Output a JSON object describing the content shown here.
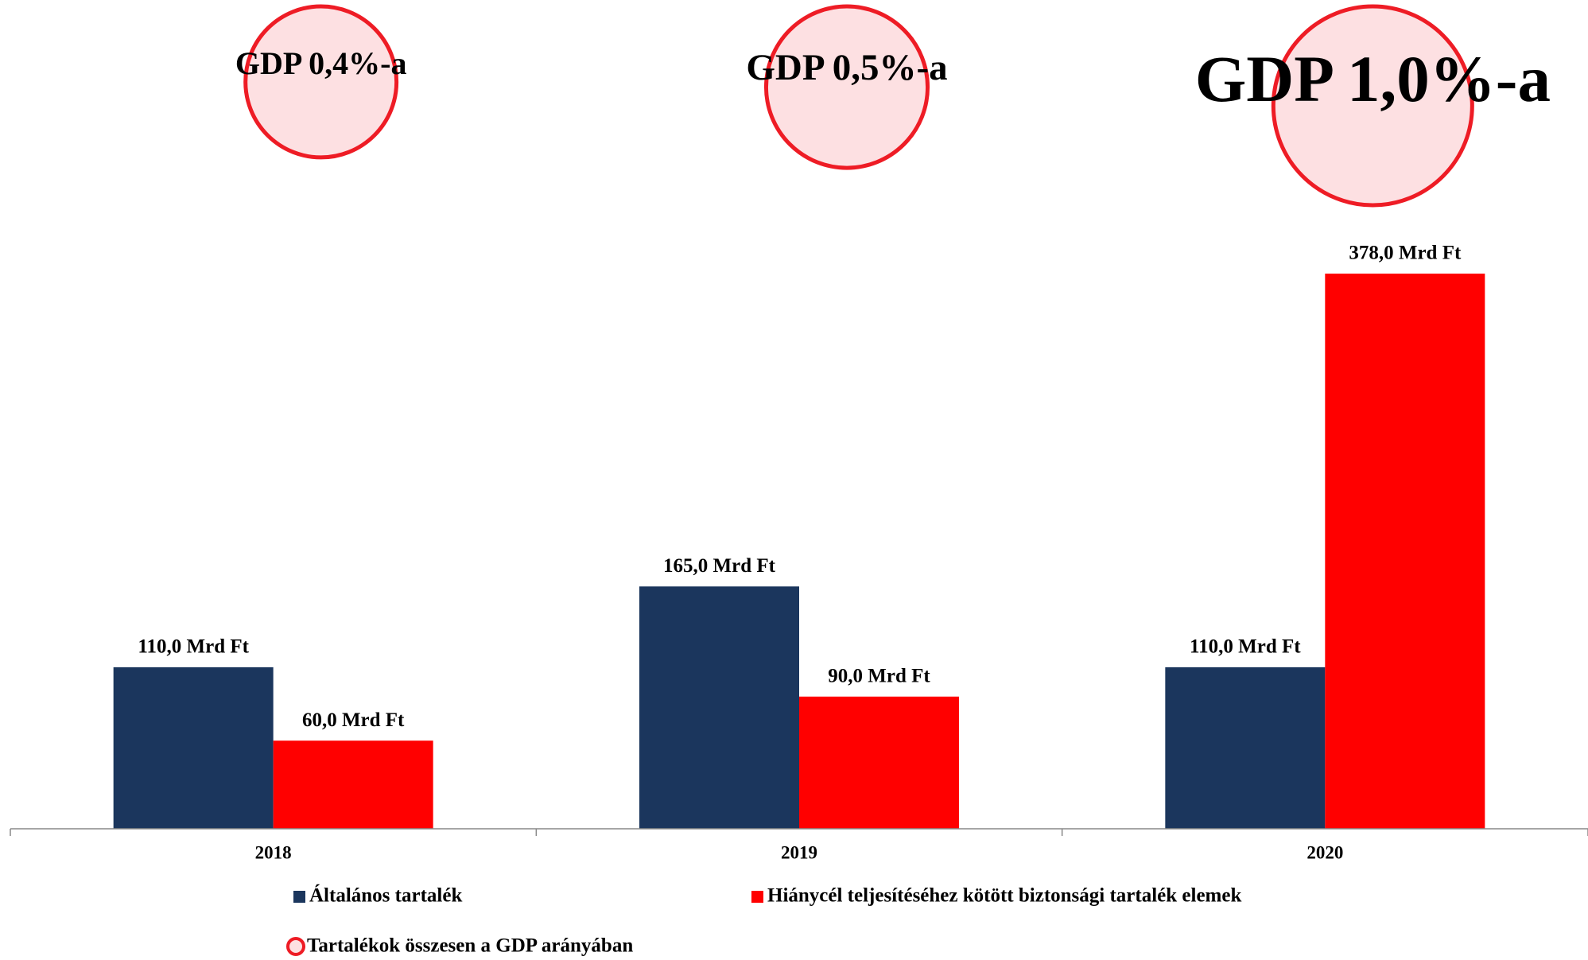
{
  "chart_data": {
    "type": "bar",
    "categories": [
      "2018",
      "2019",
      "2020"
    ],
    "series": [
      {
        "name": "Általános tartalék",
        "color": "#1b365d",
        "values": [
          110,
          165,
          110
        ],
        "value_labels": [
          "110,0 Mrd Ft",
          "165,0 Mrd Ft",
          "110,0 Mrd Ft"
        ]
      },
      {
        "name": "Hiánycél teljesítéséhez kötött biztonsági tartalék elemek",
        "color": "#ff0000",
        "values": [
          60,
          90,
          378
        ],
        "value_labels": [
          "60,0 Mrd Ft",
          "90,0 Mrd Ft",
          "378,0 Mrd Ft"
        ]
      }
    ],
    "bubbles": {
      "name": "Tartalékok összesen a GDP arányában",
      "color": "#ee1c25",
      "fill": "#fde0e2",
      "values": [
        0.4,
        0.5,
        1.0
      ],
      "value_labels": [
        "GDP 0,4%-a",
        "GDP 0,5%-a",
        "GDP 1,0%-a"
      ]
    }
  }
}
